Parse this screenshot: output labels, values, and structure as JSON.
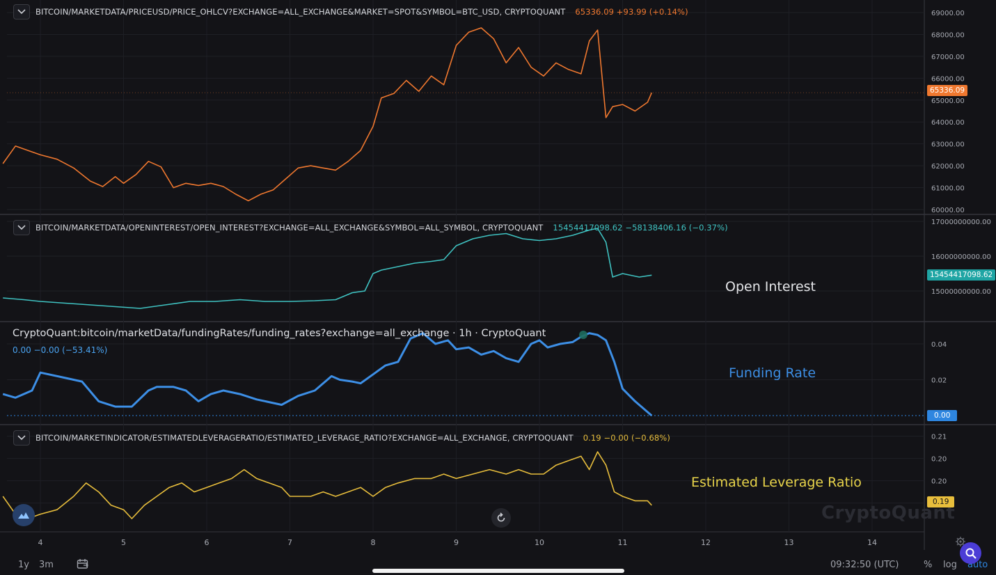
{
  "panes": {
    "price": {
      "symbol": "BITCOIN/MARKETDATA/PRICEUSD/PRICE_OHLCV?EXCHANGE=ALL_EXCHANGE&MARKET=SPOT&SYMBOL=BTC_USD, CRYPTOQUANT",
      "last": "65336.09 +93.99 (+0.14%)",
      "tag": "65336.09",
      "color": "#f0782f"
    },
    "oi": {
      "symbol": "BITCOIN/MARKETDATA/OPENINTEREST/OPEN_INTEREST?EXCHANGE=ALL_EXCHANGE&SYMBOL=ALL_SYMBOL, CRYPTOQUANT",
      "last": "15454417098.62 −58138406.16 (−0.37%)",
      "tag": "15454417098.62",
      "label": "Open Interest",
      "color": "#3fc3c2"
    },
    "funding": {
      "title": "CryptoQuant:bitcoin/marketData/fundingRates/funding_rates?exchange=all_exchange · 1h · CryptoQuant",
      "last": "0.00 −0.00 (−53.41%)",
      "tag": "0.00",
      "label": "Funding Rate",
      "color": "#3d8fe6"
    },
    "elr": {
      "symbol": "BITCOIN/MARKETINDICATOR/ESTIMATEDLEVERAGERATIO/ESTIMATED_LEVERAGE_RATIO?EXCHANGE=ALL_EXCHANGE, CRYPTOQUANT",
      "last": "0.19 −0.00 (−0.68%)",
      "tag": "0.19",
      "label": "Estimated Leverage Ratio",
      "color": "#e8be3c"
    }
  },
  "watermark": "CryptoQuant",
  "bottom_bar": {
    "range_1y": "1y",
    "range_3m": "3m",
    "time": "09:32:50 (UTC)",
    "percent": "%",
    "log": "log",
    "auto": "auto"
  },
  "icons": {
    "collapse": "chevron-down-icon",
    "calendar": "calendar-range-icon",
    "reset": "reset-chart-icon",
    "search": "search-icon",
    "settings": "gear-icon",
    "logo": "cryptoquant-logo-icon"
  },
  "chart_data": [
    {
      "type": "line",
      "title": "BITCOIN/MARKETDATA/PRICEUSD/PRICE_OHLCV?EXCHANGE=ALL_EXCHANGE&MARKET=SPOT&SYMBOL=BTC_USD, CRYPTOQUANT",
      "x": [
        3.55,
        3.7,
        3.85,
        4.0,
        4.2,
        4.4,
        4.6,
        4.75,
        4.9,
        5.0,
        5.15,
        5.3,
        5.45,
        5.6,
        5.75,
        5.9,
        6.05,
        6.2,
        6.35,
        6.5,
        6.65,
        6.8,
        6.95,
        7.1,
        7.25,
        7.4,
        7.55,
        7.7,
        7.85,
        8.0,
        8.1,
        8.25,
        8.4,
        8.55,
        8.7,
        8.85,
        9.0,
        9.15,
        9.3,
        9.45,
        9.6,
        9.75,
        9.9,
        10.05,
        10.2,
        10.35,
        10.5,
        10.6,
        10.7,
        10.8,
        10.88,
        11.0,
        11.15,
        11.3,
        11.35
      ],
      "series": [
        {
          "values": [
            62100,
            62900,
            62700,
            62500,
            62300,
            61900,
            61300,
            61050,
            61500,
            61200,
            61600,
            62200,
            61950,
            61000,
            61200,
            61100,
            61200,
            61050,
            60700,
            60400,
            60700,
            60900,
            61400,
            61900,
            62000,
            61900,
            61800,
            62200,
            62700,
            63800,
            65100,
            65300,
            65900,
            65400,
            66100,
            65700,
            67500,
            68100,
            68300,
            67800,
            66700,
            67400,
            66500,
            66100,
            66700,
            66400,
            66200,
            67700,
            68200,
            64200,
            64700,
            64800,
            64500,
            64900,
            65336.09
          ]
        }
      ],
      "ylim": [
        59800,
        69200
      ],
      "yticks": [
        "60000.00",
        "61000.00",
        "62000.00",
        "63000.00",
        "64000.00",
        "65000.00",
        "66000.00",
        "67000.00",
        "68000.00",
        "69000.00"
      ]
    },
    {
      "type": "line",
      "title": "BITCOIN/MARKETDATA/OPENINTEREST/OPEN_INTEREST?EXCHANGE=ALL_EXCHANGE&SYMBOL=ALL_SYMBOL, CRYPTOQUANT",
      "x": [
        3.55,
        3.8,
        4.0,
        4.3,
        4.6,
        4.9,
        5.2,
        5.5,
        5.8,
        6.1,
        6.4,
        6.7,
        7.0,
        7.3,
        7.55,
        7.75,
        7.9,
        8.0,
        8.1,
        8.3,
        8.5,
        8.7,
        8.85,
        9.0,
        9.2,
        9.4,
        9.6,
        9.8,
        10.0,
        10.2,
        10.4,
        10.6,
        10.7,
        10.8,
        10.88,
        11.0,
        11.2,
        11.35
      ],
      "series": [
        {
          "values": [
            14800000000,
            14750000000,
            14700000000,
            14650000000,
            14600000000,
            14550000000,
            14500000000,
            14600000000,
            14700000000,
            14700000000,
            14750000000,
            14700000000,
            14700000000,
            14720000000,
            14750000000,
            14950000000,
            15000000000,
            15500000000,
            15600000000,
            15700000000,
            15800000000,
            15850000000,
            15900000000,
            16300000000,
            16500000000,
            16600000000,
            16650000000,
            16500000000,
            16450000000,
            16500000000,
            16600000000,
            16750000000,
            16800000000,
            16400000000,
            15400000000,
            15500000000,
            15400000000,
            15454417098.62
          ]
        }
      ],
      "ylim": [
        14300000000,
        17100000000
      ],
      "yticks": [
        "15000000000.00",
        "16000000000.00",
        "17000000000.00"
      ]
    },
    {
      "type": "line",
      "title": "CryptoQuant:bitcoin/marketData/fundingRates/funding_rates?exchange=all_exchange · 1h · CryptoQuant",
      "x": [
        3.55,
        3.7,
        3.9,
        4.0,
        4.3,
        4.5,
        4.7,
        4.9,
        5.1,
        5.3,
        5.4,
        5.6,
        5.75,
        5.9,
        6.05,
        6.2,
        6.4,
        6.6,
        6.9,
        7.1,
        7.3,
        7.5,
        7.6,
        7.75,
        7.85,
        8.0,
        8.15,
        8.3,
        8.45,
        8.6,
        8.75,
        8.9,
        9.0,
        9.15,
        9.3,
        9.45,
        9.6,
        9.75,
        9.9,
        10.0,
        10.1,
        10.25,
        10.4,
        10.5,
        10.6,
        10.7,
        10.8,
        10.9,
        11.0,
        11.15,
        11.35
      ],
      "series": [
        {
          "values": [
            0.012,
            0.01,
            0.014,
            0.024,
            0.021,
            0.019,
            0.008,
            0.005,
            0.005,
            0.014,
            0.016,
            0.016,
            0.014,
            0.008,
            0.012,
            0.014,
            0.012,
            0.009,
            0.006,
            0.011,
            0.014,
            0.022,
            0.02,
            0.019,
            0.018,
            0.023,
            0.028,
            0.03,
            0.043,
            0.046,
            0.04,
            0.042,
            0.037,
            0.038,
            0.034,
            0.036,
            0.032,
            0.03,
            0.04,
            0.042,
            0.038,
            0.04,
            0.041,
            0.044,
            0.046,
            0.045,
            0.042,
            0.03,
            0.015,
            0.008,
            0.0
          ]
        }
      ],
      "ylim": [
        -0.002,
        0.048
      ],
      "yticks": [
        "0.02",
        "0.04"
      ]
    },
    {
      "type": "line",
      "title": "BITCOIN/MARKETINDICATOR/ESTIMATEDLEVERAGERATIO/ESTIMATED_LEVERAGE_RATIO?EXCHANGE=ALL_EXCHANGE, CRYPTOQUANT",
      "x": [
        3.55,
        3.7,
        3.85,
        4.0,
        4.2,
        4.4,
        4.55,
        4.7,
        4.85,
        5.0,
        5.1,
        5.25,
        5.4,
        5.55,
        5.7,
        5.85,
        6.0,
        6.15,
        6.3,
        6.45,
        6.6,
        6.75,
        6.9,
        7.0,
        7.1,
        7.25,
        7.4,
        7.55,
        7.7,
        7.85,
        8.0,
        8.15,
        8.3,
        8.5,
        8.7,
        8.85,
        9.0,
        9.2,
        9.4,
        9.6,
        9.75,
        9.9,
        10.05,
        10.2,
        10.35,
        10.5,
        10.6,
        10.7,
        10.8,
        10.9,
        11.0,
        11.15,
        11.3,
        11.35
      ],
      "series": [
        {
          "values": [
            0.195,
            0.191,
            0.19,
            0.191,
            0.192,
            0.195,
            0.198,
            0.196,
            0.193,
            0.192,
            0.19,
            0.193,
            0.195,
            0.197,
            0.198,
            0.196,
            0.197,
            0.198,
            0.199,
            0.201,
            0.199,
            0.198,
            0.197,
            0.195,
            0.195,
            0.195,
            0.196,
            0.195,
            0.196,
            0.197,
            0.195,
            0.197,
            0.198,
            0.199,
            0.199,
            0.2,
            0.199,
            0.2,
            0.201,
            0.2,
            0.201,
            0.2,
            0.2,
            0.202,
            0.203,
            0.204,
            0.201,
            0.205,
            0.202,
            0.196,
            0.195,
            0.194,
            0.194,
            0.193
          ]
        }
      ],
      "ylim": [
        0.188,
        0.211
      ],
      "yticks": [
        "0.19",
        "0.20",
        "0.20",
        "0.21"
      ]
    }
  ],
  "x_axis": {
    "ticks": [
      "4",
      "5",
      "6",
      "7",
      "8",
      "9",
      "10",
      "11",
      "12",
      "13",
      "14"
    ]
  }
}
